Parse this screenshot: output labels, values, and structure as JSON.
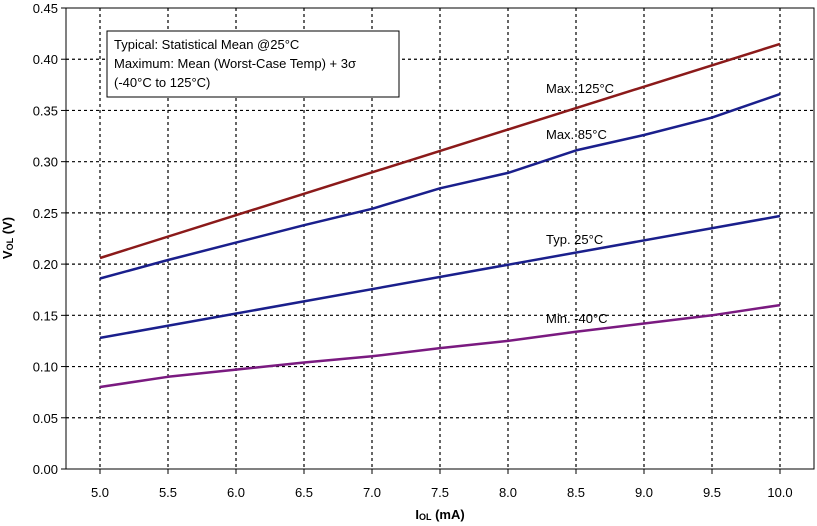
{
  "chart_data": {
    "type": "line",
    "xlabel": {
      "main": "I",
      "sub": "OL",
      "unit": " (mA)"
    },
    "ylabel": {
      "main": "V",
      "sub": "OL",
      "unit": " (V)"
    },
    "xlim": [
      4.75,
      10.25
    ],
    "ylim": [
      0,
      0.45
    ],
    "xticks": [
      "5.0",
      "5.5",
      "6.0",
      "6.5",
      "7.0",
      "7.5",
      "8.0",
      "8.5",
      "9.0",
      "9.5",
      "10.0"
    ],
    "yticks": [
      "0.00",
      "0.05",
      "0.10",
      "0.15",
      "0.20",
      "0.25",
      "0.30",
      "0.35",
      "0.40",
      "0.45"
    ],
    "grid": true,
    "annotation": [
      "Typical: Statistical Mean @25°C",
      "Maximum: Mean (Worst-Case Temp) + 3σ",
      "(-40°C to 125°C)"
    ],
    "series": [
      {
        "name": "Max. 125°C",
        "color": "#8b1a1a",
        "x": [
          5.0,
          10.0
        ],
        "y": [
          0.206,
          0.415
        ]
      },
      {
        "name": "Max. 85°C",
        "color": "#1a1f8c",
        "x": [
          5.0,
          5.5,
          6.0,
          6.5,
          7.0,
          7.5,
          8.0,
          8.5,
          9.0,
          9.5,
          10.0
        ],
        "y": [
          0.186,
          0.204,
          0.221,
          0.238,
          0.254,
          0.274,
          0.289,
          0.311,
          0.326,
          0.343,
          0.366
        ]
      },
      {
        "name": "Typ. 25°C",
        "color": "#1a1f8c",
        "x": [
          5.0,
          10.0
        ],
        "y": [
          0.128,
          0.247
        ]
      },
      {
        "name": "Min. -40°C",
        "color": "#7a1a80",
        "x": [
          5.0,
          5.5,
          6.0,
          6.5,
          7.0,
          7.5,
          8.0,
          8.5,
          9.0,
          9.5,
          10.0
        ],
        "y": [
          0.08,
          0.09,
          0.097,
          0.104,
          0.11,
          0.118,
          0.125,
          0.134,
          0.142,
          0.15,
          0.16
        ]
      }
    ]
  }
}
